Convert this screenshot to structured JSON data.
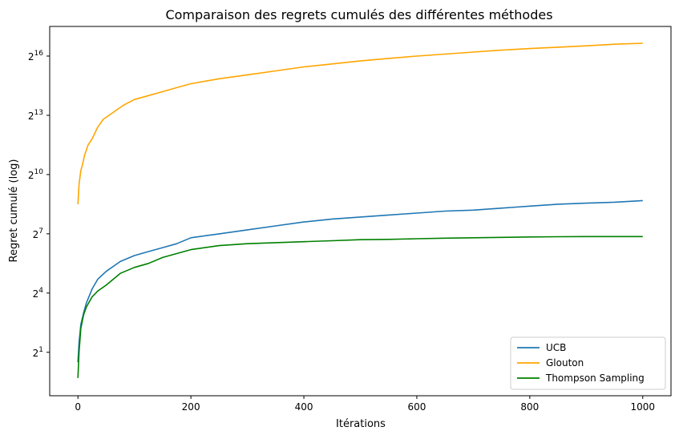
{
  "chart_data": {
    "type": "line",
    "title": "Comparaison des regrets cumulés des différentes méthodes",
    "xlabel": "Itérations",
    "ylabel": "Regret cumulé (log)",
    "xlim": [
      -50,
      1050
    ],
    "ylim_log2": [
      -1.2,
      17.5
    ],
    "y_scale": "log2",
    "xticks": [
      {
        "value": 0,
        "label": "0"
      },
      {
        "value": 200,
        "label": "200"
      },
      {
        "value": 400,
        "label": "400"
      },
      {
        "value": 600,
        "label": "600"
      },
      {
        "value": 800,
        "label": "800"
      },
      {
        "value": 1000,
        "label": "1000"
      }
    ],
    "yticks": [
      {
        "exp": 1,
        "base": "2",
        "sup": "1"
      },
      {
        "exp": 4,
        "base": "2",
        "sup": "4"
      },
      {
        "exp": 7,
        "base": "2",
        "sup": "7"
      },
      {
        "exp": 10,
        "base": "2",
        "sup": "10"
      },
      {
        "exp": 13,
        "base": "2",
        "sup": "13"
      },
      {
        "exp": 16,
        "base": "2",
        "sup": "16"
      }
    ],
    "grid": false,
    "legend_position": "bottom-right",
    "series": [
      {
        "name": "UCB",
        "color": "#1f77b4",
        "x": [
          0,
          2,
          5,
          10,
          15,
          25,
          35,
          50,
          75,
          100,
          125,
          150,
          175,
          200,
          250,
          300,
          350,
          400,
          450,
          500,
          550,
          600,
          650,
          700,
          750,
          800,
          850,
          900,
          950,
          1000
        ],
        "y": [
          0.5,
          1.5,
          2.4,
          3.0,
          3.5,
          4.2,
          4.7,
          5.1,
          5.6,
          5.9,
          6.1,
          6.3,
          6.5,
          6.8,
          7.0,
          7.2,
          7.4,
          7.6,
          7.75,
          7.85,
          7.95,
          8.05,
          8.15,
          8.2,
          8.3,
          8.4,
          8.5,
          8.55,
          8.6,
          8.68
        ]
      },
      {
        "name": "Glouton",
        "color": "#ffa500",
        "x": [
          0,
          2,
          5,
          8,
          12,
          18,
          25,
          35,
          45,
          60,
          80,
          100,
          125,
          150,
          175,
          200,
          250,
          300,
          350,
          400,
          450,
          500,
          550,
          600,
          650,
          700,
          750,
          800,
          850,
          900,
          950,
          1000
        ],
        "y": [
          8.5,
          9.5,
          10.2,
          10.5,
          11.0,
          11.5,
          11.8,
          12.4,
          12.8,
          13.1,
          13.5,
          13.8,
          14.0,
          14.2,
          14.4,
          14.6,
          14.85,
          15.05,
          15.25,
          15.45,
          15.6,
          15.75,
          15.88,
          16.0,
          16.1,
          16.2,
          16.3,
          16.38,
          16.45,
          16.52,
          16.6,
          16.65
        ]
      },
      {
        "name": "Thompson Sampling",
        "color": "#008000",
        "x": [
          0,
          2,
          5,
          10,
          15,
          25,
          35,
          50,
          75,
          100,
          125,
          150,
          175,
          200,
          250,
          300,
          350,
          400,
          450,
          500,
          550,
          600,
          650,
          700,
          750,
          800,
          850,
          900,
          950,
          1000
        ],
        "y": [
          -0.3,
          1.0,
          2.2,
          2.9,
          3.3,
          3.8,
          4.1,
          4.4,
          5.0,
          5.3,
          5.5,
          5.8,
          6.0,
          6.2,
          6.4,
          6.5,
          6.55,
          6.6,
          6.65,
          6.7,
          6.72,
          6.75,
          6.78,
          6.8,
          6.82,
          6.84,
          6.85,
          6.86,
          6.86,
          6.86
        ]
      }
    ]
  }
}
